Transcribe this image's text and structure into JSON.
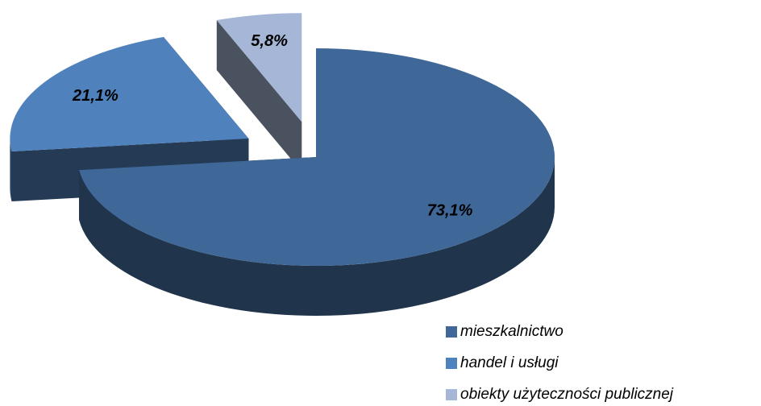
{
  "chart_data": {
    "type": "pie",
    "categories": [
      "mieszkalnictwo",
      "handel i usługi",
      "obiekty użyteczności publicznej"
    ],
    "values": [
      73.1,
      21.1,
      5.8
    ],
    "value_labels": [
      "73,1%",
      "21,1%",
      "5,8%"
    ],
    "colors": [
      "#3f6797",
      "#4f81bd",
      "#a5b6d6"
    ],
    "legend": "bottom-right"
  }
}
